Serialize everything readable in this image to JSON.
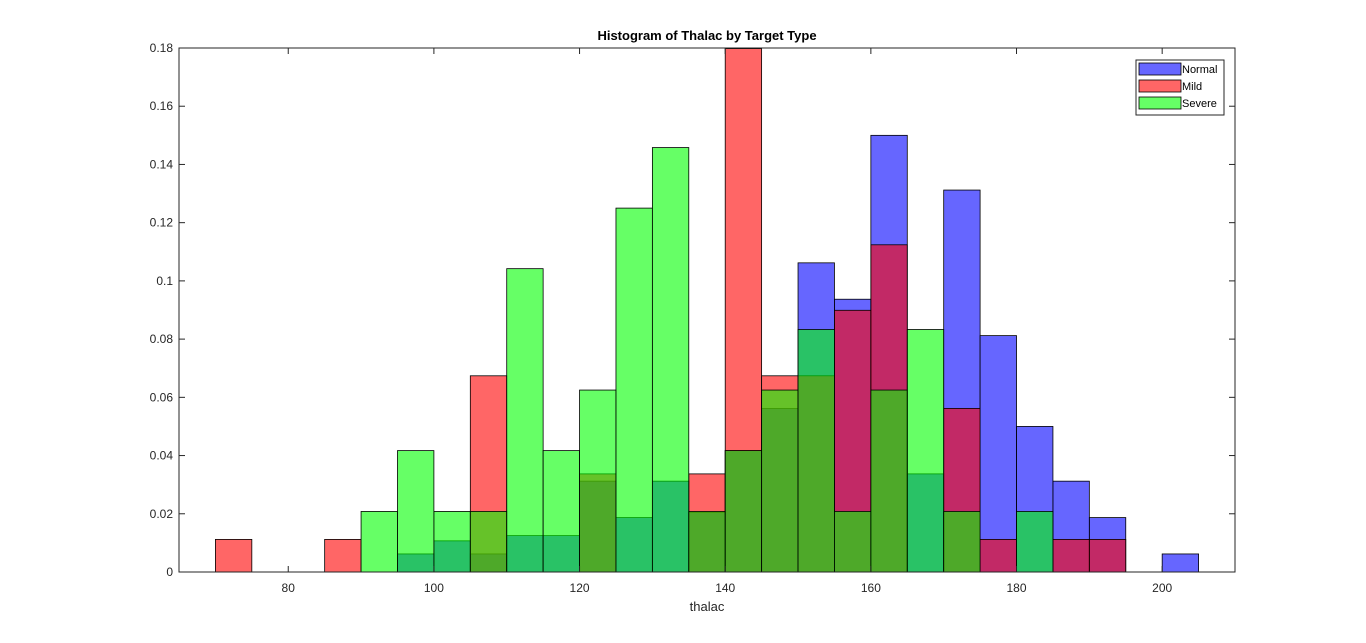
{
  "chart_data": {
    "type": "bar",
    "title": "Histogram of Thalac by Target Type",
    "xlabel": "thalac",
    "ylabel": "",
    "xlim": [
      65,
      210
    ],
    "ylim": [
      0,
      0.18
    ],
    "xticks": [
      80,
      100,
      120,
      140,
      160,
      180,
      200
    ],
    "yticks": [
      0,
      0.02,
      0.04,
      0.06,
      0.08,
      0.1,
      0.12,
      0.14,
      0.16,
      0.18
    ],
    "ytick_labels": [
      "0",
      "0.02",
      "0.04",
      "0.06",
      "0.08",
      "0.1",
      "0.12",
      "0.14",
      "0.16",
      "0.18"
    ],
    "grid": false,
    "legend_position": "top-right",
    "bin_width": 5,
    "series": [
      {
        "name": "Normal",
        "color": "#0000ff",
        "opacity": 0.6,
        "bins": [
          {
            "x": 95,
            "value": 0.0062
          },
          {
            "x": 100,
            "value": 0.0107
          },
          {
            "x": 105,
            "value": 0.0062
          },
          {
            "x": 110,
            "value": 0.0125
          },
          {
            "x": 115,
            "value": 0.0125
          },
          {
            "x": 120,
            "value": 0.0312
          },
          {
            "x": 125,
            "value": 0.0187
          },
          {
            "x": 130,
            "value": 0.0312
          },
          {
            "x": 135,
            "value": 0.0205
          },
          {
            "x": 140,
            "value": 0.0417
          },
          {
            "x": 145,
            "value": 0.0562
          },
          {
            "x": 150,
            "value": 0.1062
          },
          {
            "x": 155,
            "value": 0.0937
          },
          {
            "x": 160,
            "value": 0.15
          },
          {
            "x": 165,
            "value": 0.0337
          },
          {
            "x": 170,
            "value": 0.1312
          },
          {
            "x": 175,
            "value": 0.0812
          },
          {
            "x": 180,
            "value": 0.05
          },
          {
            "x": 185,
            "value": 0.0312
          },
          {
            "x": 190,
            "value": 0.0187
          },
          {
            "x": 200,
            "value": 0.0062
          }
        ]
      },
      {
        "name": "Mild",
        "color": "#ff0000",
        "opacity": 0.6,
        "bins": [
          {
            "x": 70,
            "value": 0.0112
          },
          {
            "x": 85,
            "value": 0.0112
          },
          {
            "x": 105,
            "value": 0.0674
          },
          {
            "x": 120,
            "value": 0.0337
          },
          {
            "x": 135,
            "value": 0.0337
          },
          {
            "x": 140,
            "value": 0.1798
          },
          {
            "x": 145,
            "value": 0.0674
          },
          {
            "x": 150,
            "value": 0.0674
          },
          {
            "x": 155,
            "value": 0.0899
          },
          {
            "x": 160,
            "value": 0.1124
          },
          {
            "x": 170,
            "value": 0.0562
          },
          {
            "x": 175,
            "value": 0.0112
          },
          {
            "x": 185,
            "value": 0.0112
          },
          {
            "x": 190,
            "value": 0.0112
          }
        ]
      },
      {
        "name": "Severe",
        "color": "#00ff00",
        "opacity": 0.6,
        "bins": [
          {
            "x": 90,
            "value": 0.0208
          },
          {
            "x": 95,
            "value": 0.0417
          },
          {
            "x": 100,
            "value": 0.0208
          },
          {
            "x": 105,
            "value": 0.0208
          },
          {
            "x": 110,
            "value": 0.1042
          },
          {
            "x": 115,
            "value": 0.0417
          },
          {
            "x": 120,
            "value": 0.0625
          },
          {
            "x": 125,
            "value": 0.125
          },
          {
            "x": 130,
            "value": 0.1458
          },
          {
            "x": 135,
            "value": 0.0208
          },
          {
            "x": 140,
            "value": 0.0417
          },
          {
            "x": 145,
            "value": 0.0625
          },
          {
            "x": 150,
            "value": 0.0833
          },
          {
            "x": 155,
            "value": 0.0208
          },
          {
            "x": 160,
            "value": 0.0625
          },
          {
            "x": 165,
            "value": 0.0833
          },
          {
            "x": 170,
            "value": 0.0208
          },
          {
            "x": 180,
            "value": 0.0208
          }
        ]
      }
    ]
  }
}
